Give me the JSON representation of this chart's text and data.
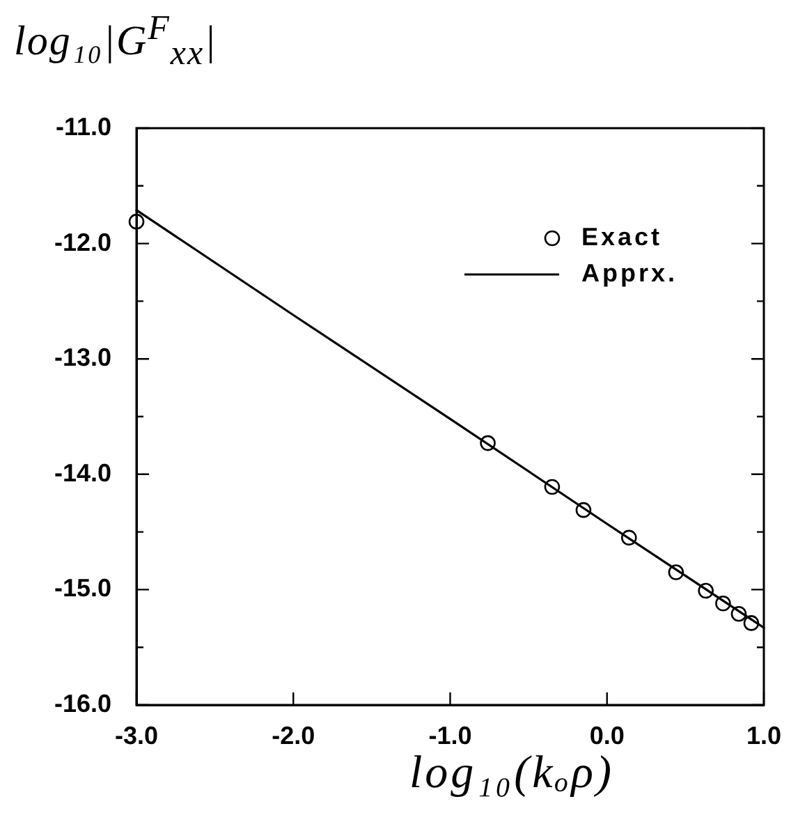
{
  "chart_data": {
    "type": "scatter",
    "xlabel": "log₁₀(kₒρ)",
    "ylabel": "log₁₀|G$^{F}$$_{xx}$|",
    "xlim": [
      -3,
      1
    ],
    "ylim": [
      -16,
      -11
    ],
    "xticks": [
      {
        "value": -3,
        "label": "-3.0"
      },
      {
        "value": -2,
        "label": "-2.0"
      },
      {
        "value": -1,
        "label": "-1.0"
      },
      {
        "value": 0,
        "label": "0.0"
      },
      {
        "value": 1,
        "label": "1.0"
      }
    ],
    "yticks": [
      {
        "value": -16,
        "label": "-16.0"
      },
      {
        "value": -15.5,
        "label": null
      },
      {
        "value": -15,
        "label": "-15.0"
      },
      {
        "value": -14.5,
        "label": null
      },
      {
        "value": -14,
        "label": "-14.0"
      },
      {
        "value": -13.5,
        "label": null
      },
      {
        "value": -13,
        "label": "-13.0"
      },
      {
        "value": -12.5,
        "label": null
      },
      {
        "value": -12,
        "label": "-12.0"
      },
      {
        "value": -11.5,
        "label": null
      },
      {
        "value": -11,
        "label": "-11.0"
      }
    ],
    "legend": "top right",
    "series": [
      {
        "name": "Exact",
        "marker": "circle",
        "color": "#000000",
        "x": [
          -3,
          -0.76,
          -0.35,
          -0.15,
          0.14,
          0.44,
          0.63,
          0.74,
          0.84,
          0.92
        ],
        "values": [
          -11.81,
          -13.73,
          -14.11,
          -14.31,
          -14.55,
          -14.85,
          -15.01,
          -15.12,
          -15.21,
          -15.29
        ]
      },
      {
        "name": "Apprx.",
        "type": "line",
        "marker": "none",
        "color": "#000000",
        "x": [
          -3,
          -2,
          -1,
          0,
          1
        ],
        "values": [
          -11.71,
          -12.62,
          -13.52,
          -14.43,
          -15.33
        ]
      }
    ]
  }
}
